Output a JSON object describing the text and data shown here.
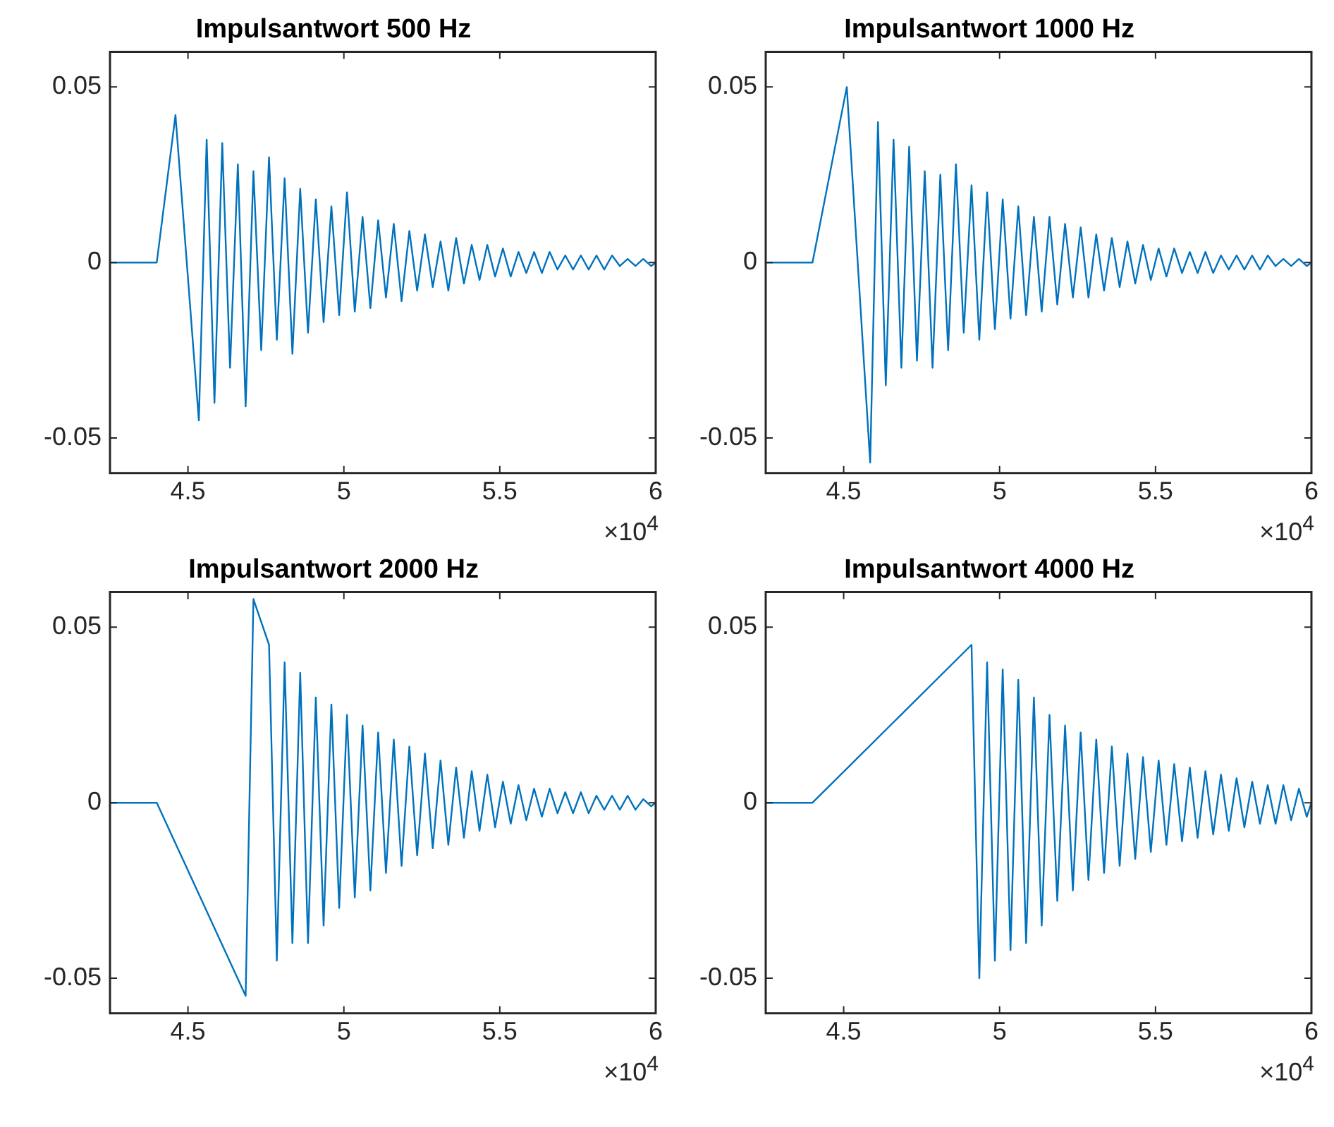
{
  "chart_data": [
    {
      "type": "line",
      "title": "Impulsantwort 500 Hz",
      "xlim": [
        4.25,
        6
      ],
      "xticks": [
        4.5,
        5,
        5.5,
        6
      ],
      "ylim": [
        -0.06,
        0.06
      ],
      "yticks": [
        -0.05,
        0,
        0.05
      ],
      "annotations": [
        "×10$^{4}$"
      ],
      "x": [
        4.25,
        4.4,
        4.41,
        4.435,
        4.46,
        4.485,
        4.51,
        4.535,
        4.56,
        4.585,
        4.61,
        4.635,
        4.66,
        4.685,
        4.71,
        4.735,
        4.76,
        4.785,
        4.81,
        4.835,
        4.86,
        4.885,
        4.91,
        4.935,
        4.96,
        4.985,
        5.01,
        5.035,
        5.06,
        5.085,
        5.11,
        5.135,
        5.16,
        5.185,
        5.21,
        5.235,
        5.26,
        5.285,
        5.31,
        5.335,
        5.36,
        5.385,
        5.41,
        5.435,
        5.46,
        5.485,
        5.51,
        5.535,
        5.56,
        5.585,
        5.61,
        5.635,
        5.66,
        5.685,
        5.71,
        5.735,
        5.76,
        5.785,
        5.81,
        5.835,
        5.86,
        5.885,
        5.91,
        5.935,
        5.96,
        5.985,
        6
      ],
      "series": [
        {
          "color": "#0072bd",
          "values": [
            0,
            0,
            null,
            null,
            0.042,
            null,
            null,
            -0.045,
            0.035,
            -0.04,
            0.034,
            -0.03,
            0.028,
            -0.041,
            0.026,
            -0.025,
            0.03,
            -0.022,
            0.024,
            -0.026,
            0.021,
            -0.02,
            0.018,
            -0.017,
            0.016,
            -0.015,
            0.02,
            -0.014,
            0.013,
            -0.013,
            0.012,
            -0.01,
            0.011,
            -0.011,
            0.009,
            -0.008,
            0.008,
            -0.007,
            0.006,
            -0.008,
            0.007,
            -0.006,
            0.005,
            -0.005,
            0.005,
            -0.004,
            0.004,
            -0.004,
            0.003,
            -0.003,
            0.003,
            -0.003,
            0.003,
            -0.002,
            0.002,
            -0.002,
            0.002,
            -0.002,
            0.002,
            -0.002,
            0.002,
            -0.001,
            0.001,
            -0.001,
            0.001,
            -0.001,
            0
          ]
        }
      ]
    },
    {
      "type": "line",
      "title": "Impulsantwort 1000 Hz",
      "xlim": [
        4.25,
        6
      ],
      "xticks": [
        4.5,
        5,
        5.5,
        6
      ],
      "ylim": [
        -0.06,
        0.06
      ],
      "yticks": [
        -0.05,
        0,
        0.05
      ],
      "annotations": [
        "×10$^{4}$"
      ],
      "x": [
        4.25,
        4.4,
        4.41,
        4.435,
        4.46,
        4.485,
        4.51,
        4.535,
        4.56,
        4.585,
        4.61,
        4.635,
        4.66,
        4.685,
        4.71,
        4.735,
        4.76,
        4.785,
        4.81,
        4.835,
        4.86,
        4.885,
        4.91,
        4.935,
        4.96,
        4.985,
        5.01,
        5.035,
        5.06,
        5.085,
        5.11,
        5.135,
        5.16,
        5.185,
        5.21,
        5.235,
        5.26,
        5.285,
        5.31,
        5.335,
        5.36,
        5.385,
        5.41,
        5.435,
        5.46,
        5.485,
        5.51,
        5.535,
        5.56,
        5.585,
        5.61,
        5.635,
        5.66,
        5.685,
        5.71,
        5.735,
        5.76,
        5.785,
        5.81,
        5.835,
        5.86,
        5.885,
        5.91,
        5.935,
        5.96,
        5.985,
        6
      ],
      "series": [
        {
          "color": "#0072bd",
          "values": [
            0,
            0,
            null,
            null,
            null,
            null,
            0.05,
            null,
            null,
            -0.057,
            0.04,
            -0.035,
            0.035,
            -0.03,
            0.033,
            -0.028,
            0.026,
            -0.03,
            0.025,
            -0.025,
            0.028,
            -0.02,
            0.022,
            -0.022,
            0.02,
            -0.019,
            0.018,
            -0.016,
            0.016,
            -0.015,
            0.013,
            -0.014,
            0.013,
            -0.012,
            0.011,
            -0.01,
            0.01,
            -0.01,
            0.008,
            -0.008,
            0.007,
            -0.007,
            0.006,
            -0.006,
            0.005,
            -0.005,
            0.004,
            -0.004,
            0.004,
            -0.003,
            0.003,
            -0.003,
            0.003,
            -0.003,
            0.002,
            -0.002,
            0.002,
            -0.002,
            0.002,
            -0.002,
            0.002,
            -0.001,
            0.001,
            -0.001,
            0.001,
            -0.001,
            0
          ]
        }
      ]
    },
    {
      "type": "line",
      "title": "Impulsantwort 2000 Hz",
      "xlim": [
        4.25,
        6
      ],
      "xticks": [
        4.5,
        5,
        5.5,
        6
      ],
      "ylim": [
        -0.06,
        0.06
      ],
      "yticks": [
        -0.05,
        0,
        0.05
      ],
      "annotations": [
        "×10$^{4}$"
      ],
      "x": [
        4.25,
        4.4,
        4.41,
        4.435,
        4.46,
        4.485,
        4.51,
        4.535,
        4.56,
        4.585,
        4.61,
        4.635,
        4.66,
        4.685,
        4.71,
        4.735,
        4.76,
        4.785,
        4.81,
        4.835,
        4.86,
        4.885,
        4.91,
        4.935,
        4.96,
        4.985,
        5.01,
        5.035,
        5.06,
        5.085,
        5.11,
        5.135,
        5.16,
        5.185,
        5.21,
        5.235,
        5.26,
        5.285,
        5.31,
        5.335,
        5.36,
        5.385,
        5.41,
        5.435,
        5.46,
        5.485,
        5.51,
        5.535,
        5.56,
        5.585,
        5.61,
        5.635,
        5.66,
        5.685,
        5.71,
        5.735,
        5.76,
        5.785,
        5.81,
        5.835,
        5.86,
        5.885,
        5.91,
        5.935,
        5.96,
        5.985,
        6
      ],
      "series": [
        {
          "color": "#0072bd",
          "values": [
            0,
            0,
            null,
            null,
            null,
            null,
            null,
            null,
            null,
            null,
            null,
            null,
            null,
            -0.055,
            0.058,
            null,
            0.045,
            -0.045,
            0.04,
            -0.04,
            0.037,
            -0.04,
            0.03,
            -0.035,
            0.028,
            -0.03,
            0.025,
            -0.027,
            0.022,
            -0.025,
            0.02,
            -0.02,
            0.018,
            -0.018,
            0.016,
            -0.015,
            0.014,
            -0.013,
            0.012,
            -0.012,
            0.01,
            -0.01,
            0.009,
            -0.008,
            0.008,
            -0.007,
            0.006,
            -0.006,
            0.005,
            -0.005,
            0.004,
            -0.004,
            0.004,
            -0.003,
            0.003,
            -0.003,
            0.003,
            -0.003,
            0.002,
            -0.002,
            0.002,
            -0.002,
            0.002,
            -0.002,
            0.001,
            -0.001,
            0
          ]
        }
      ]
    },
    {
      "type": "line",
      "title": "Impulsantwort 4000 Hz",
      "xlim": [
        4.25,
        6
      ],
      "xticks": [
        4.5,
        5,
        5.5,
        6
      ],
      "ylim": [
        -0.06,
        0.06
      ],
      "yticks": [
        -0.05,
        0,
        0.05
      ],
      "annotations": [
        "×10$^{4}$"
      ],
      "x": [
        4.25,
        4.4,
        4.41,
        4.435,
        4.46,
        4.485,
        4.51,
        4.535,
        4.56,
        4.585,
        4.61,
        4.635,
        4.66,
        4.685,
        4.71,
        4.735,
        4.76,
        4.785,
        4.81,
        4.835,
        4.86,
        4.885,
        4.91,
        4.935,
        4.96,
        4.985,
        5.01,
        5.035,
        5.06,
        5.085,
        5.11,
        5.135,
        5.16,
        5.185,
        5.21,
        5.235,
        5.26,
        5.285,
        5.31,
        5.335,
        5.36,
        5.385,
        5.41,
        5.435,
        5.46,
        5.485,
        5.51,
        5.535,
        5.56,
        5.585,
        5.61,
        5.635,
        5.66,
        5.685,
        5.71,
        5.735,
        5.76,
        5.785,
        5.81,
        5.835,
        5.86,
        5.885,
        5.91,
        5.935,
        5.96,
        5.985,
        6
      ],
      "series": [
        {
          "color": "#0072bd",
          "values": [
            0,
            0,
            null,
            null,
            null,
            null,
            null,
            null,
            null,
            null,
            null,
            null,
            null,
            null,
            null,
            null,
            null,
            null,
            null,
            null,
            null,
            null,
            0.045,
            -0.05,
            0.04,
            -0.045,
            0.038,
            -0.042,
            0.035,
            -0.04,
            0.03,
            -0.035,
            0.025,
            -0.028,
            0.022,
            -0.025,
            0.02,
            -0.022,
            0.018,
            -0.02,
            0.016,
            -0.018,
            0.014,
            -0.016,
            0.013,
            -0.014,
            0.012,
            -0.012,
            0.011,
            -0.011,
            0.01,
            -0.01,
            0.009,
            -0.009,
            0.008,
            -0.008,
            0.007,
            -0.007,
            0.006,
            -0.006,
            0.005,
            -0.006,
            0.005,
            -0.005,
            0.004,
            -0.004,
            0
          ]
        }
      ]
    }
  ]
}
